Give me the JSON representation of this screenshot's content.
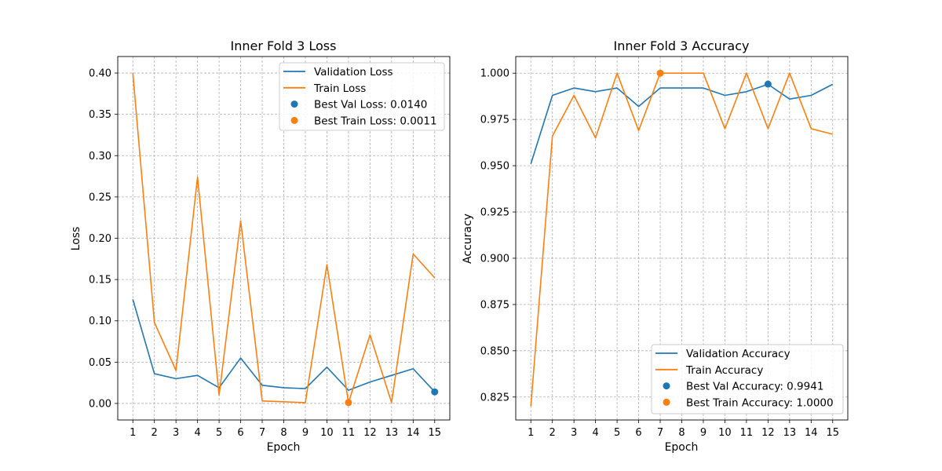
{
  "colors": {
    "validation": "#1f77b4",
    "train": "#ff7f0e"
  },
  "chart_data": [
    {
      "type": "line",
      "title": "Inner Fold 3 Loss",
      "xlabel": "Epoch",
      "ylabel": "Loss",
      "x": [
        1,
        2,
        3,
        4,
        5,
        6,
        7,
        8,
        9,
        10,
        11,
        12,
        13,
        15,
        14
      ],
      "categories": [
        1,
        2,
        3,
        4,
        5,
        6,
        7,
        8,
        9,
        10,
        11,
        12,
        13,
        14,
        15
      ],
      "xlim": [
        0.3,
        15.7
      ],
      "ylim": [
        -0.02,
        0.42
      ],
      "yticks": [
        "0.00",
        "0.05",
        "0.10",
        "0.15",
        "0.20",
        "0.25",
        "0.30",
        "0.35",
        "0.40"
      ],
      "grid": true,
      "legend_position": "top-right",
      "series": [
        {
          "name": "Validation Loss",
          "color": "#1f77b4",
          "values": [
            0.126,
            0.036,
            0.03,
            0.034,
            0.019,
            0.055,
            0.022,
            0.019,
            0.018,
            0.044,
            0.016,
            0.026,
            0.034,
            0.042,
            0.014
          ]
        },
        {
          "name": "Train Loss",
          "color": "#ff7f0e",
          "values": [
            0.4,
            0.098,
            0.04,
            0.274,
            0.01,
            0.221,
            0.003,
            0.002,
            0.001,
            0.168,
            0.001,
            0.083,
            0.001,
            0.181,
            0.152
          ]
        }
      ],
      "points": [
        {
          "name": "Best Val Loss: 0.0140",
          "x": 15,
          "y": 0.014,
          "color": "#1f77b4"
        },
        {
          "name": "Best Train Loss: 0.0011",
          "x": 11,
          "y": 0.0011,
          "color": "#ff7f0e"
        }
      ]
    },
    {
      "type": "line",
      "title": "Inner Fold 3 Accuracy",
      "xlabel": "Epoch",
      "ylabel": "Accuracy",
      "categories": [
        1,
        2,
        3,
        4,
        5,
        6,
        7,
        8,
        9,
        10,
        11,
        12,
        13,
        14,
        15
      ],
      "xlim": [
        0.3,
        15.7
      ],
      "ylim": [
        0.8126,
        1.009
      ],
      "yticks": [
        "0.825",
        "0.850",
        "0.875",
        "0.900",
        "0.925",
        "0.950",
        "0.975",
        "1.000"
      ],
      "grid": true,
      "legend_position": "bottom-right",
      "series": [
        {
          "name": "Validation Accuracy",
          "color": "#1f77b4",
          "values": [
            0.951,
            0.988,
            0.992,
            0.99,
            0.992,
            0.982,
            0.992,
            0.992,
            0.992,
            0.988,
            0.99,
            0.994,
            0.986,
            0.988,
            0.994
          ]
        },
        {
          "name": "Train Accuracy",
          "color": "#ff7f0e",
          "values": [
            0.82,
            0.966,
            0.988,
            0.965,
            1.0,
            0.969,
            1.0,
            1.0,
            1.0,
            0.97,
            1.0,
            0.97,
            1.0,
            0.97,
            0.967
          ]
        }
      ],
      "points": [
        {
          "name": "Best Val Accuracy: 0.9941",
          "x": 12,
          "y": 0.9941,
          "color": "#1f77b4"
        },
        {
          "name": "Best Train Accuracy: 1.0000",
          "x": 7,
          "y": 1.0,
          "color": "#ff7f0e"
        }
      ]
    }
  ]
}
